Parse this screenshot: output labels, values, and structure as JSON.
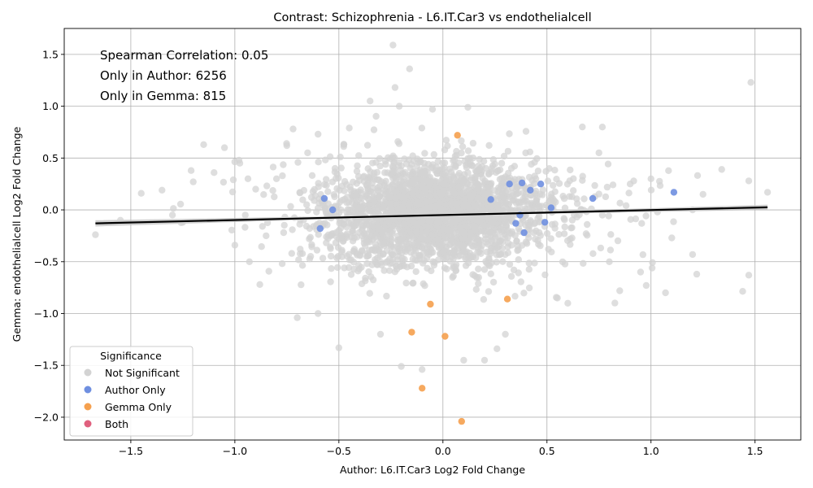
{
  "chart_data": {
    "type": "scatter",
    "title": "Contrast: Schizophrenia - L6.IT.Car3 vs endothelialcell",
    "xlabel": "Author: L6.IT.Car3 Log2 Fold Change",
    "ylabel": "Gemma: endothelialcell Log2 Fold Change",
    "xlim": [
      -1.82,
      1.72
    ],
    "ylim": [
      -2.22,
      1.75
    ],
    "x_ticks": [
      -1.5,
      -1.0,
      -0.5,
      0.0,
      0.5,
      1.0,
      1.5
    ],
    "x_tick_labels": [
      "−1.5",
      "−1.0",
      "−0.5",
      "0.0",
      "0.5",
      "1.0",
      "1.5"
    ],
    "y_ticks": [
      -2.0,
      -1.5,
      -1.0,
      -0.5,
      0.0,
      0.5,
      1.0,
      1.5
    ],
    "y_tick_labels": [
      "−2.0",
      "−1.5",
      "−1.0",
      "−0.5",
      "0.0",
      "0.5",
      "1.0",
      "1.5"
    ],
    "grid": true,
    "annotations": [
      "Spearman Correlation: 0.05",
      "Only in Author: 6256",
      "Only in Gemma: 815"
    ],
    "legend": {
      "title": "Significance",
      "placement": "lower-left",
      "entries": [
        {
          "label": "Not Significant",
          "color": "#d3d3d3"
        },
        {
          "label": "Author Only",
          "color": "#6f8fe0"
        },
        {
          "label": "Gemma Only",
          "color": "#f5a04e"
        },
        {
          "label": "Both",
          "color": "#e0607e"
        }
      ]
    },
    "regression_line": {
      "x": [
        -1.67,
        1.56
      ],
      "y": [
        -0.13,
        0.025
      ],
      "color": "#000000"
    },
    "series": [
      {
        "name": "Author Only",
        "color": "#6f8fe0",
        "points": [
          [
            -0.57,
            0.11
          ],
          [
            -0.53,
            0.0
          ],
          [
            -0.59,
            -0.18
          ],
          [
            0.23,
            0.1
          ],
          [
            0.32,
            0.25
          ],
          [
            0.38,
            0.26
          ],
          [
            0.42,
            0.19
          ],
          [
            0.47,
            0.25
          ],
          [
            0.35,
            -0.13
          ],
          [
            0.39,
            -0.22
          ],
          [
            0.49,
            -0.12
          ],
          [
            0.52,
            0.02
          ],
          [
            0.72,
            0.11
          ],
          [
            1.11,
            0.17
          ],
          [
            0.37,
            -0.05
          ]
        ]
      },
      {
        "name": "Gemma Only",
        "color": "#f5a04e",
        "points": [
          [
            0.07,
            0.72
          ],
          [
            -0.06,
            -0.91
          ],
          [
            -0.15,
            -1.18
          ],
          [
            0.01,
            -1.22
          ],
          [
            0.31,
            -0.86
          ],
          [
            -0.1,
            -1.72
          ],
          [
            0.09,
            -2.04
          ]
        ]
      },
      {
        "name": "Not Significant",
        "color": "#d3d3d3",
        "count_drawn": 2600,
        "points": [
          [
            -1.67,
            -0.24
          ],
          [
            -1.55,
            -0.1
          ],
          [
            -1.45,
            0.16
          ],
          [
            -1.35,
            0.19
          ],
          [
            -1.15,
            0.63
          ],
          [
            -1.1,
            0.36
          ],
          [
            -1.05,
            0.6
          ],
          [
            -0.98,
            0.48
          ],
          [
            -0.93,
            -0.5
          ],
          [
            -0.88,
            -0.72
          ],
          [
            -0.85,
            -0.25
          ],
          [
            -0.8,
            0.3
          ],
          [
            -0.75,
            0.62
          ],
          [
            -0.72,
            0.78
          ],
          [
            -0.65,
            0.55
          ],
          [
            -0.6,
            0.73
          ],
          [
            -0.5,
            -1.33
          ],
          [
            -0.45,
            0.79
          ],
          [
            -0.35,
            1.05
          ],
          [
            -0.24,
            1.59
          ],
          [
            -0.23,
            1.18
          ],
          [
            -0.21,
            1.0
          ],
          [
            -0.16,
            1.36
          ],
          [
            -0.05,
            0.97
          ],
          [
            0.12,
            0.99
          ],
          [
            0.2,
            -1.45
          ],
          [
            0.1,
            -1.45
          ],
          [
            -0.2,
            -1.51
          ],
          [
            -0.1,
            -1.54
          ],
          [
            0.26,
            -1.34
          ],
          [
            0.6,
            -0.9
          ],
          [
            0.67,
            0.8
          ],
          [
            0.85,
            -0.78
          ],
          [
            0.9,
            0.25
          ],
          [
            1.0,
            0.3
          ],
          [
            1.07,
            -0.8
          ],
          [
            1.1,
            -0.27
          ],
          [
            1.2,
            -0.43
          ],
          [
            1.22,
            -0.62
          ],
          [
            1.25,
            0.15
          ],
          [
            1.34,
            0.39
          ],
          [
            1.47,
            0.28
          ],
          [
            1.48,
            1.23
          ],
          [
            1.47,
            -0.63
          ],
          [
            1.56,
            0.17
          ],
          [
            -1.25,
            -0.12
          ],
          [
            -1.2,
            0.27
          ],
          [
            -1.0,
            -0.34
          ],
          [
            -0.95,
            -0.05
          ],
          [
            -0.9,
            0.2
          ],
          [
            -0.7,
            -1.04
          ],
          [
            -0.6,
            -1.0
          ],
          [
            -0.3,
            -1.2
          ],
          [
            0.3,
            -1.2
          ],
          [
            0.55,
            -0.85
          ],
          [
            0.75,
            0.55
          ],
          [
            0.8,
            -0.5
          ],
          [
            0.95,
            -0.6
          ],
          [
            1.2,
            0.0
          ],
          [
            -1.3,
            -0.05
          ]
        ]
      }
    ]
  }
}
